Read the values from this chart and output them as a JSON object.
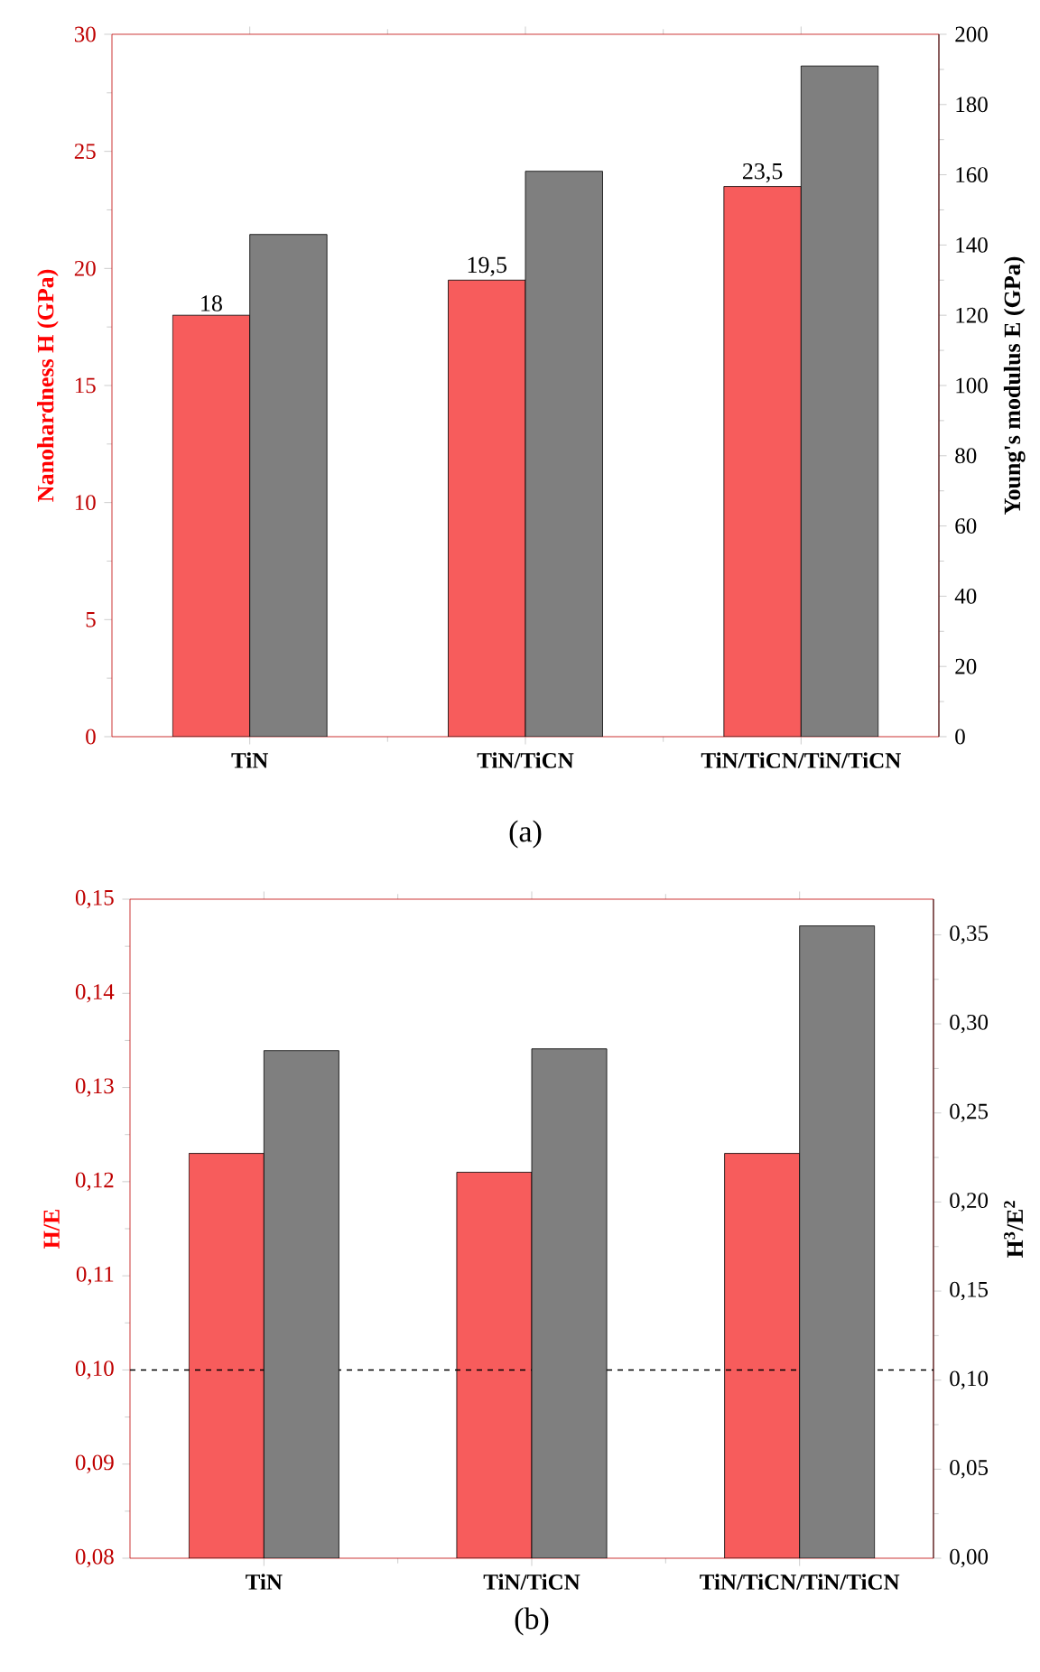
{
  "chart_data": [
    {
      "type": "bar",
      "categories": [
        "TiN",
        "TiN/TiCN",
        "TiN/TiCN/TiN/TiCN"
      ],
      "ylabel": "Nanohardness H (GPa)",
      "y2label": "Young's modulus E (GPa)",
      "ylim": [
        0,
        30
      ],
      "yticks": [
        0,
        5,
        10,
        15,
        20,
        25,
        30
      ],
      "y2lim": [
        0,
        200
      ],
      "y2ticks": [
        0,
        20,
        40,
        60,
        80,
        100,
        120,
        140,
        160,
        180,
        200
      ],
      "annotations": [
        "(a)"
      ],
      "series": [
        {
          "color": "#f75c5c",
          "values": [
            18,
            19.5,
            23.5
          ],
          "value_labels": [
            "18",
            "19,5",
            "23,5"
          ]
        },
        {
          "color": "#7f7f7f",
          "values": [
            143,
            161,
            191
          ],
          "axis": "y2"
        }
      ]
    },
    {
      "type": "bar",
      "categories": [
        "TiN",
        "TiN/TiCN",
        "TiN/TiCN/TiN/TiCN"
      ],
      "ylabel": "H/E",
      "y2label": "H$^{3}$/E$^{2}$",
      "ylim": [
        0.08,
        0.15
      ],
      "yticks": [
        {
          "value": 0.08,
          "label": "0,08"
        },
        {
          "value": 0.09,
          "label": "0,09"
        },
        {
          "value": 0.1,
          "label": "0,10"
        },
        {
          "value": 0.11,
          "label": "0,11"
        },
        {
          "value": 0.12,
          "label": "0,12"
        },
        {
          "value": 0.13,
          "label": "0,13"
        },
        {
          "value": 0.14,
          "label": "0,14"
        },
        {
          "value": 0.15,
          "label": "0,15"
        }
      ],
      "y2lim": [
        0,
        0.37
      ],
      "y2ticks": [
        {
          "value": 0,
          "label": "0,00"
        },
        {
          "value": 0.05,
          "label": "0,05"
        },
        {
          "value": 0.1,
          "label": "0,10"
        },
        {
          "value": 0.15,
          "label": "0,15"
        },
        {
          "value": 0.2,
          "label": "0,20"
        },
        {
          "value": 0.25,
          "label": "0,25"
        },
        {
          "value": 0.3,
          "label": "0,30"
        },
        {
          "value": 0.35,
          "label": "0,35"
        }
      ],
      "annotations": [
        "(b)"
      ],
      "ref_lines": [
        {
          "axis": "y",
          "value": 0.1,
          "line_style": "dashed",
          "color": "#000000"
        }
      ],
      "series": [
        {
          "color": "#f75c5c",
          "values": [
            0.123,
            0.121,
            0.123
          ]
        },
        {
          "color": "#7f7f7f",
          "values": [
            0.285,
            0.286,
            0.355
          ],
          "axis": "y2"
        }
      ]
    }
  ]
}
